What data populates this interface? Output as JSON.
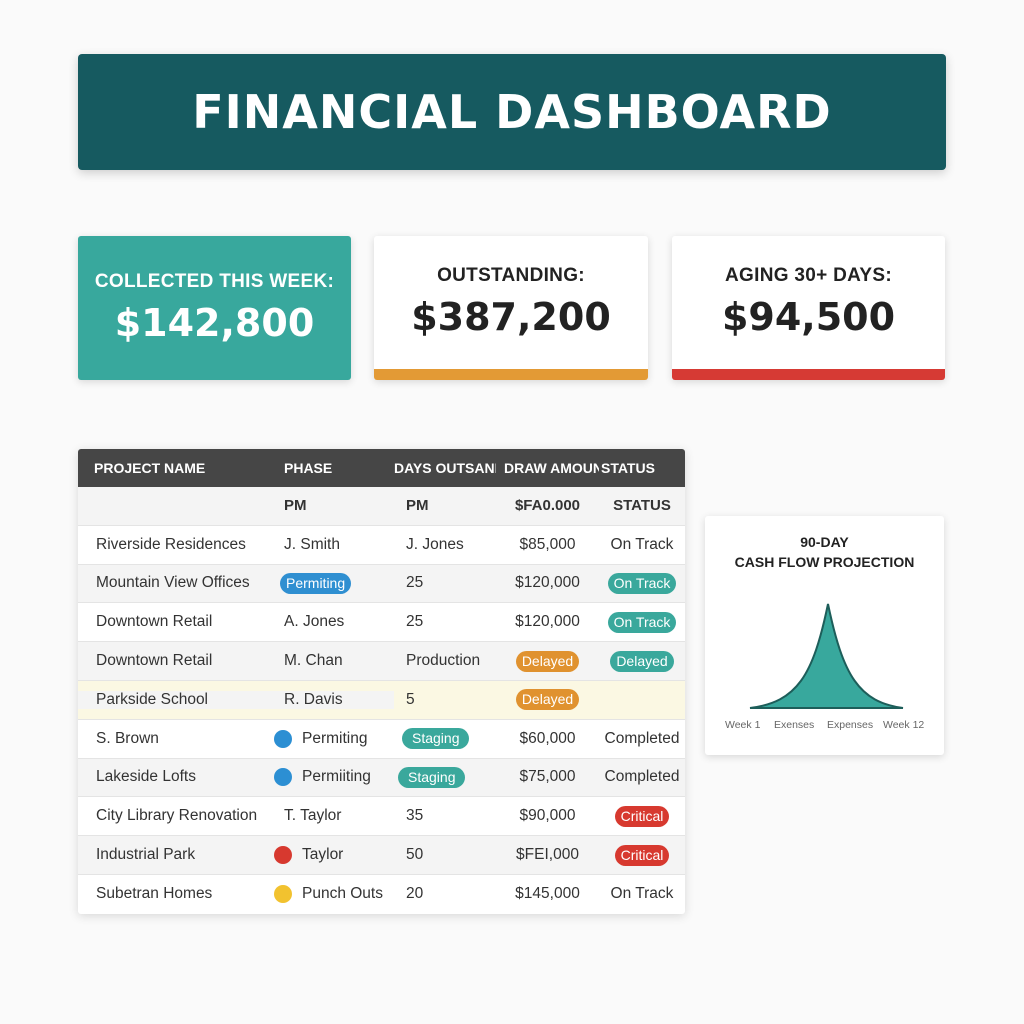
{
  "header": {
    "title": "FINANCIAL DASHBOARD"
  },
  "cards": {
    "collected": {
      "label": "COLLECTED THIS WEEK:",
      "value": "$142,800"
    },
    "outstanding": {
      "label": "OUTSTANDING:",
      "value": "$387,200",
      "accent": "#e39a35"
    },
    "aging": {
      "label": "AGING 30+ DAYS:",
      "value": "$94,500",
      "accent": "#d63a34"
    }
  },
  "table": {
    "headers": [
      "PROJECT NAME",
      "PHASE",
      "DAYS OUTSANDING",
      "DRAW AMOUNT",
      "STATUS"
    ],
    "subheader": [
      "",
      "PM",
      "PM",
      "$FA0.000",
      "STATUS"
    ],
    "rows": [
      {
        "c1": "Riverside Residences",
        "c2": "J. Smith",
        "c3": "J. Jones",
        "c4": "$85,000",
        "c5": "On Track"
      },
      {
        "c1": "Mountain View Offices",
        "c2": "Permiting",
        "c3": "25",
        "c4": "$120,000",
        "c5": "On Track"
      },
      {
        "c1": "Downtown Retail",
        "c2": "A. Jones",
        "c3": "25",
        "c4": "$120,000",
        "c5": "On Track"
      },
      {
        "c1": "Downtown Retail",
        "c2": "M. Chan",
        "c3": "Production",
        "c4": "Delayed",
        "c5": "Delayed"
      },
      {
        "c1": "Parkside School",
        "c2": "R. Davis",
        "c3": "5",
        "c4": "Delayed",
        "c5": ""
      },
      {
        "c1": "S. Brown",
        "c2": "Permiting",
        "c3": "Staging",
        "c4": "$60,000",
        "c5": "Completed"
      },
      {
        "c1": "Lakeside Lofts",
        "c2": "Permiiting",
        "c3": "Staging",
        "c4": "$75,000",
        "c5": "Completed"
      },
      {
        "c1": "City Library Renovation",
        "c2": "T. Taylor",
        "c3": "35",
        "c4": "$90,000",
        "c5": "Critical"
      },
      {
        "c1": "Industrial Park",
        "c2": "Taylor",
        "c3": "50",
        "c4": "$FEI,000",
        "c5": "Critical"
      },
      {
        "c1": "Subetran Homes",
        "c2": "Punch Outs",
        "c3": "20",
        "c4": "$145,000",
        "c5": "On Track"
      }
    ]
  },
  "cashflow": {
    "title_line1": "90-DAY",
    "title_line2": "CASH FLOW PROJECTION",
    "x_labels": [
      "Week 1",
      "Exenses",
      "Expenses",
      "Week 12"
    ],
    "fill_color": "#38a89d"
  },
  "colors": {
    "header_bg": "#165a60",
    "teal": "#38a89d",
    "orange": "#e39a35",
    "red": "#d63a34",
    "blue": "#2f8fd1",
    "yellow": "#f2c22f"
  },
  "icons": [
    "status-dot-blue-icon",
    "status-dot-red-icon",
    "status-dot-yellow-icon"
  ]
}
